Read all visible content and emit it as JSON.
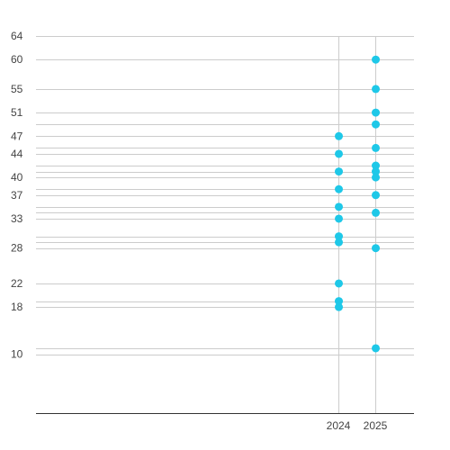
{
  "chart_data": {
    "type": "scatter",
    "x_categories": [
      "2024",
      "2025"
    ],
    "y_ticks": [
      10,
      18,
      22,
      28,
      33,
      37,
      40,
      44,
      47,
      51,
      55,
      60,
      64
    ],
    "ylim": [
      0,
      64
    ],
    "grid": true,
    "legend": "none",
    "color": "#1ec8e8",
    "series": [
      {
        "points": [
          {
            "x": "2024",
            "y": 47
          },
          {
            "x": "2024",
            "y": 44
          },
          {
            "x": "2024",
            "y": 41
          },
          {
            "x": "2024",
            "y": 38
          },
          {
            "x": "2024",
            "y": 35
          },
          {
            "x": "2024",
            "y": 33
          },
          {
            "x": "2024",
            "y": 30
          },
          {
            "x": "2024",
            "y": 29
          },
          {
            "x": "2024",
            "y": 22
          },
          {
            "x": "2024",
            "y": 19
          },
          {
            "x": "2024",
            "y": 18
          },
          {
            "x": "2025",
            "y": 60
          },
          {
            "x": "2025",
            "y": 55
          },
          {
            "x": "2025",
            "y": 51
          },
          {
            "x": "2025",
            "y": 49
          },
          {
            "x": "2025",
            "y": 45
          },
          {
            "x": "2025",
            "y": 42
          },
          {
            "x": "2025",
            "y": 41
          },
          {
            "x": "2025",
            "y": 40
          },
          {
            "x": "2025",
            "y": 37
          },
          {
            "x": "2025",
            "y": 34
          },
          {
            "x": "2025",
            "y": 28
          },
          {
            "x": "2025",
            "y": 11
          }
        ]
      }
    ]
  }
}
